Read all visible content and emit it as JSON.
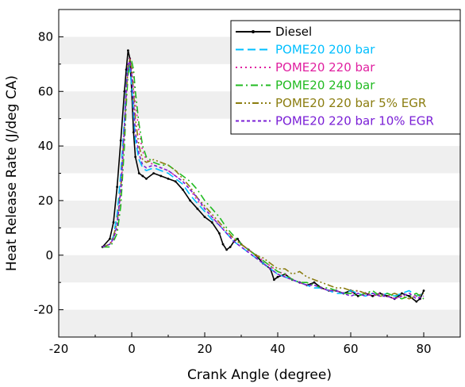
{
  "chart_data": {
    "type": "line",
    "title": "",
    "xlabel": "Crank Angle (degree)",
    "ylabel": "Heat Release Rate (J/deg CA)",
    "xlim": [
      -20,
      90
    ],
    "ylim": [
      -30,
      90
    ],
    "xticks": [
      -20,
      0,
      20,
      40,
      60,
      80
    ],
    "yticks": [
      -20,
      0,
      20,
      40,
      60,
      80
    ],
    "grid": "horizontal bands",
    "legend": "top-right",
    "series": [
      {
        "name": "Diesel",
        "color": "#000000",
        "dash": "solid",
        "points": [
          [
            -8,
            3
          ],
          [
            -6,
            6
          ],
          [
            -5,
            12
          ],
          [
            -4,
            25
          ],
          [
            -3,
            42
          ],
          [
            -2,
            60
          ],
          [
            -1.5,
            68
          ],
          [
            -1,
            75
          ],
          [
            -0.5,
            72
          ],
          [
            0,
            60
          ],
          [
            0.5,
            45
          ],
          [
            1,
            36
          ],
          [
            2,
            30
          ],
          [
            3,
            29
          ],
          [
            4,
            28
          ],
          [
            6,
            30
          ],
          [
            8,
            29
          ],
          [
            10,
            28
          ],
          [
            12,
            27
          ],
          [
            14,
            24
          ],
          [
            16,
            20
          ],
          [
            18,
            17
          ],
          [
            20,
            14
          ],
          [
            22,
            12
          ],
          [
            24,
            8
          ],
          [
            25,
            4
          ],
          [
            26,
            2
          ],
          [
            27,
            3
          ],
          [
            28,
            5
          ],
          [
            29,
            6
          ],
          [
            30,
            4
          ],
          [
            32,
            2
          ],
          [
            34,
            0
          ],
          [
            36,
            -3
          ],
          [
            38,
            -5
          ],
          [
            39,
            -9
          ],
          [
            40,
            -8
          ],
          [
            42,
            -7
          ],
          [
            44,
            -9
          ],
          [
            46,
            -10
          ],
          [
            48,
            -11
          ],
          [
            50,
            -10
          ],
          [
            52,
            -12
          ],
          [
            54,
            -13
          ],
          [
            56,
            -13
          ],
          [
            58,
            -14
          ],
          [
            60,
            -13
          ],
          [
            62,
            -15
          ],
          [
            64,
            -14
          ],
          [
            66,
            -15
          ],
          [
            68,
            -14
          ],
          [
            70,
            -15
          ],
          [
            72,
            -16
          ],
          [
            74,
            -14
          ],
          [
            76,
            -15
          ],
          [
            78,
            -17
          ],
          [
            79,
            -16
          ],
          [
            80,
            -13
          ]
        ]
      },
      {
        "name": "POME20 200 bar",
        "color": "#00bfff",
        "dash": "long-dash",
        "points": [
          [
            -8,
            3
          ],
          [
            -6,
            4
          ],
          [
            -5,
            7
          ],
          [
            -4,
            15
          ],
          [
            -3,
            30
          ],
          [
            -2,
            50
          ],
          [
            -1.5,
            62
          ],
          [
            -1,
            70
          ],
          [
            -0.5,
            68
          ],
          [
            0,
            62
          ],
          [
            0.5,
            52
          ],
          [
            1,
            42
          ],
          [
            2,
            35
          ],
          [
            3,
            32
          ],
          [
            4,
            31
          ],
          [
            6,
            32
          ],
          [
            8,
            31
          ],
          [
            10,
            30
          ],
          [
            12,
            28
          ],
          [
            14,
            26
          ],
          [
            16,
            22
          ],
          [
            18,
            19
          ],
          [
            20,
            16
          ],
          [
            22,
            13
          ],
          [
            24,
            11
          ],
          [
            26,
            8
          ],
          [
            28,
            5
          ],
          [
            30,
            3
          ],
          [
            32,
            1
          ],
          [
            34,
            -1
          ],
          [
            36,
            -3
          ],
          [
            38,
            -5
          ],
          [
            40,
            -7
          ],
          [
            42,
            -8
          ],
          [
            44,
            -9
          ],
          [
            46,
            -10
          ],
          [
            48,
            -11
          ],
          [
            50,
            -12
          ],
          [
            52,
            -12
          ],
          [
            54,
            -13
          ],
          [
            56,
            -14
          ],
          [
            58,
            -14
          ],
          [
            60,
            -13
          ],
          [
            62,
            -14
          ],
          [
            64,
            -15
          ],
          [
            66,
            -14
          ],
          [
            68,
            -15
          ],
          [
            70,
            -14
          ],
          [
            72,
            -15
          ],
          [
            74,
            -14
          ],
          [
            76,
            -13
          ],
          [
            78,
            -15
          ],
          [
            80,
            -14
          ]
        ]
      },
      {
        "name": "POME20 220 bar",
        "color": "#e020a0",
        "dash": "dot",
        "points": [
          [
            -8,
            3
          ],
          [
            -6,
            4
          ],
          [
            -5,
            6
          ],
          [
            -4,
            10
          ],
          [
            -3,
            22
          ],
          [
            -2,
            45
          ],
          [
            -1.5,
            58
          ],
          [
            -1,
            68
          ],
          [
            -0.5,
            72
          ],
          [
            0,
            70
          ],
          [
            0.5,
            65
          ],
          [
            1,
            56
          ],
          [
            2,
            45
          ],
          [
            3,
            38
          ],
          [
            4,
            35
          ],
          [
            6,
            33
          ],
          [
            8,
            32
          ],
          [
            10,
            31
          ],
          [
            12,
            29
          ],
          [
            14,
            27
          ],
          [
            16,
            24
          ],
          [
            18,
            20
          ],
          [
            20,
            17
          ],
          [
            22,
            14
          ],
          [
            24,
            11
          ],
          [
            26,
            8
          ],
          [
            28,
            6
          ],
          [
            30,
            4
          ],
          [
            32,
            2
          ],
          [
            34,
            0
          ],
          [
            36,
            -2
          ],
          [
            38,
            -4
          ],
          [
            40,
            -6
          ],
          [
            42,
            -7
          ],
          [
            44,
            -9
          ],
          [
            46,
            -10
          ],
          [
            48,
            -11
          ],
          [
            50,
            -11
          ],
          [
            52,
            -12
          ],
          [
            54,
            -13
          ],
          [
            56,
            -13
          ],
          [
            58,
            -14
          ],
          [
            60,
            -14
          ],
          [
            62,
            -13
          ],
          [
            64,
            -14
          ],
          [
            66,
            -15
          ],
          [
            68,
            -14
          ],
          [
            70,
            -15
          ],
          [
            72,
            -16
          ],
          [
            74,
            -15
          ],
          [
            76,
            -14
          ],
          [
            78,
            -15
          ],
          [
            80,
            -16
          ]
        ]
      },
      {
        "name": "POME20 240 bar",
        "color": "#22bb22",
        "dash": "dash-dot",
        "points": [
          [
            -8,
            3
          ],
          [
            -6,
            3
          ],
          [
            -5,
            5
          ],
          [
            -4,
            8
          ],
          [
            -3,
            18
          ],
          [
            -2,
            40
          ],
          [
            -1.5,
            55
          ],
          [
            -1,
            66
          ],
          [
            -0.5,
            70
          ],
          [
            0,
            71
          ],
          [
            0.5,
            68
          ],
          [
            1,
            60
          ],
          [
            2,
            48
          ],
          [
            3,
            40
          ],
          [
            4,
            36
          ],
          [
            6,
            34
          ],
          [
            8,
            33
          ],
          [
            10,
            33
          ],
          [
            12,
            31
          ],
          [
            14,
            29
          ],
          [
            16,
            27
          ],
          [
            18,
            24
          ],
          [
            20,
            20
          ],
          [
            22,
            17
          ],
          [
            24,
            14
          ],
          [
            26,
            10
          ],
          [
            28,
            7
          ],
          [
            30,
            4
          ],
          [
            32,
            2
          ],
          [
            34,
            0
          ],
          [
            36,
            -2
          ],
          [
            38,
            -4
          ],
          [
            40,
            -6
          ],
          [
            42,
            -7
          ],
          [
            44,
            -9
          ],
          [
            46,
            -10
          ],
          [
            48,
            -10
          ],
          [
            50,
            -11
          ],
          [
            52,
            -12
          ],
          [
            54,
            -12
          ],
          [
            56,
            -13
          ],
          [
            58,
            -14
          ],
          [
            60,
            -14
          ],
          [
            62,
            -15
          ],
          [
            64,
            -14
          ],
          [
            66,
            -13
          ],
          [
            68,
            -15
          ],
          [
            70,
            -14
          ],
          [
            72,
            -15
          ],
          [
            74,
            -16
          ],
          [
            76,
            -15
          ],
          [
            78,
            -14
          ],
          [
            80,
            -16
          ]
        ]
      },
      {
        "name": "POME20 220 bar 5% EGR",
        "color": "#8b7d10",
        "dash": "dash-dot-dot",
        "points": [
          [
            -8,
            3
          ],
          [
            -6,
            4
          ],
          [
            -5,
            7
          ],
          [
            -4,
            12
          ],
          [
            -3,
            25
          ],
          [
            -2,
            46
          ],
          [
            -1.5,
            60
          ],
          [
            -1,
            69
          ],
          [
            -0.5,
            72
          ],
          [
            0,
            68
          ],
          [
            0.5,
            60
          ],
          [
            1,
            50
          ],
          [
            2,
            40
          ],
          [
            3,
            35
          ],
          [
            4,
            34
          ],
          [
            6,
            35
          ],
          [
            8,
            34
          ],
          [
            10,
            33
          ],
          [
            12,
            31
          ],
          [
            14,
            28
          ],
          [
            16,
            25
          ],
          [
            18,
            21
          ],
          [
            20,
            18
          ],
          [
            22,
            15
          ],
          [
            24,
            12
          ],
          [
            26,
            9
          ],
          [
            28,
            6
          ],
          [
            30,
            4
          ],
          [
            32,
            2
          ],
          [
            34,
            0
          ],
          [
            36,
            -1
          ],
          [
            38,
            -3
          ],
          [
            40,
            -5
          ],
          [
            42,
            -5
          ],
          [
            44,
            -7
          ],
          [
            46,
            -6
          ],
          [
            48,
            -8
          ],
          [
            50,
            -9
          ],
          [
            52,
            -10
          ],
          [
            54,
            -11
          ],
          [
            56,
            -12
          ],
          [
            58,
            -12
          ],
          [
            60,
            -13
          ],
          [
            62,
            -13
          ],
          [
            64,
            -14
          ],
          [
            66,
            -14
          ],
          [
            68,
            -15
          ],
          [
            70,
            -15
          ],
          [
            72,
            -14
          ],
          [
            74,
            -15
          ],
          [
            76,
            -16
          ],
          [
            78,
            -15
          ],
          [
            80,
            -14
          ]
        ]
      },
      {
        "name": "POME20 220 bar 10% EGR",
        "color": "#7a1fd6",
        "dash": "short-dash",
        "points": [
          [
            -8,
            3
          ],
          [
            -6,
            4
          ],
          [
            -5,
            6
          ],
          [
            -4,
            11
          ],
          [
            -3,
            24
          ],
          [
            -2,
            47
          ],
          [
            -1.5,
            61
          ],
          [
            -1,
            70
          ],
          [
            -0.5,
            71
          ],
          [
            0,
            66
          ],
          [
            0.5,
            56
          ],
          [
            1,
            45
          ],
          [
            2,
            37
          ],
          [
            3,
            33
          ],
          [
            4,
            32
          ],
          [
            6,
            33
          ],
          [
            8,
            32
          ],
          [
            10,
            31
          ],
          [
            12,
            29
          ],
          [
            14,
            27
          ],
          [
            16,
            24
          ],
          [
            18,
            21
          ],
          [
            20,
            17
          ],
          [
            22,
            14
          ],
          [
            24,
            11
          ],
          [
            26,
            8
          ],
          [
            28,
            5
          ],
          [
            30,
            3
          ],
          [
            32,
            1
          ],
          [
            34,
            -1
          ],
          [
            36,
            -3
          ],
          [
            38,
            -5
          ],
          [
            40,
            -7
          ],
          [
            42,
            -8
          ],
          [
            44,
            -9
          ],
          [
            46,
            -10
          ],
          [
            48,
            -11
          ],
          [
            50,
            -11
          ],
          [
            52,
            -12
          ],
          [
            54,
            -13
          ],
          [
            56,
            -13
          ],
          [
            58,
            -14
          ],
          [
            60,
            -15
          ],
          [
            62,
            -14
          ],
          [
            64,
            -15
          ],
          [
            66,
            -14
          ],
          [
            68,
            -15
          ],
          [
            70,
            -15
          ],
          [
            72,
            -16
          ],
          [
            74,
            -15
          ],
          [
            76,
            -14
          ],
          [
            78,
            -16
          ],
          [
            80,
            -15
          ]
        ]
      }
    ]
  }
}
